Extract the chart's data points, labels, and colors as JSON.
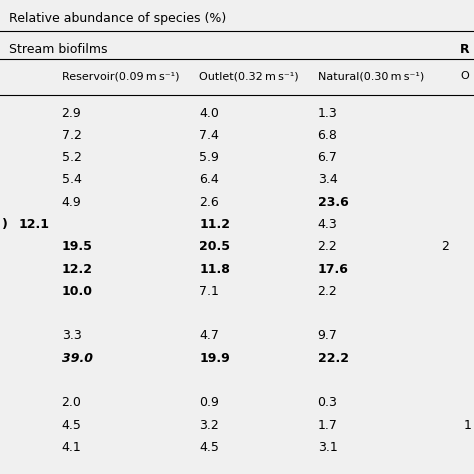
{
  "title": "Relative abundance of species (%)",
  "header1": "Stream biofilms",
  "header2_right": "R",
  "col_headers": [
    "Reservoir(0.09 m s⁻¹)",
    "Outlet(0.32 m s⁻¹)",
    "Natural(0.30 m s⁻¹)",
    "O"
  ],
  "rows": [
    {
      "vals": [
        "2.9",
        "4.0",
        "1.3",
        ""
      ],
      "bold": [
        false,
        false,
        false,
        false
      ]
    },
    {
      "vals": [
        "7.2",
        "7.4",
        "6.8",
        ""
      ],
      "bold": [
        false,
        false,
        false,
        false
      ]
    },
    {
      "vals": [
        "5.2",
        "5.9",
        "6.7",
        ""
      ],
      "bold": [
        false,
        false,
        false,
        false
      ]
    },
    {
      "vals": [
        "5.4",
        "6.4",
        "3.4",
        ""
      ],
      "bold": [
        false,
        false,
        false,
        false
      ]
    },
    {
      "vals": [
        "4.9",
        "2.6",
        "23.6",
        ""
      ],
      "bold": [
        false,
        false,
        true,
        false
      ]
    },
    {
      "vals": [
        "12.1",
        "11.2",
        "4.3",
        ""
      ],
      "bold": [
        true,
        true,
        false,
        false
      ],
      "left_partial": true
    },
    {
      "vals": [
        "19.5",
        "20.5",
        "2.2",
        "2"
      ],
      "bold": [
        true,
        true,
        false,
        false
      ]
    },
    {
      "vals": [
        "12.2",
        "11.8",
        "17.6",
        ""
      ],
      "bold": [
        true,
        true,
        true,
        false
      ]
    },
    {
      "vals": [
        "10.0",
        "7.1",
        "2.2",
        ""
      ],
      "bold": [
        true,
        false,
        false,
        false
      ]
    },
    {
      "vals": [
        "",
        "",
        "",
        ""
      ],
      "bold": [
        false,
        false,
        false,
        false
      ]
    },
    {
      "vals": [
        "3.3",
        "4.7",
        "9.7",
        ""
      ],
      "bold": [
        false,
        false,
        false,
        false
      ]
    },
    {
      "vals": [
        "39.0",
        "19.9",
        "22.2",
        ""
      ],
      "bold": [
        true,
        true,
        true,
        false
      ],
      "italic_first": true
    },
    {
      "vals": [
        "",
        "",
        "",
        ""
      ],
      "bold": [
        false,
        false,
        false,
        false
      ]
    },
    {
      "vals": [
        "2.0",
        "0.9",
        "0.3",
        ""
      ],
      "bold": [
        false,
        false,
        false,
        false
      ]
    },
    {
      "vals": [
        "4.5",
        "3.2",
        "1.7",
        "1"
      ],
      "bold": [
        false,
        false,
        false,
        false
      ],
      "right_partial": true
    },
    {
      "vals": [
        "4.1",
        "4.5",
        "3.1",
        ""
      ],
      "bold": [
        false,
        false,
        false,
        false
      ]
    }
  ],
  "background_color": "#f0f0f0",
  "line_color": "#000000",
  "text_color": "#000000",
  "fontsize_title": 9.0,
  "fontsize_header": 9.0,
  "fontsize_data": 9.0
}
